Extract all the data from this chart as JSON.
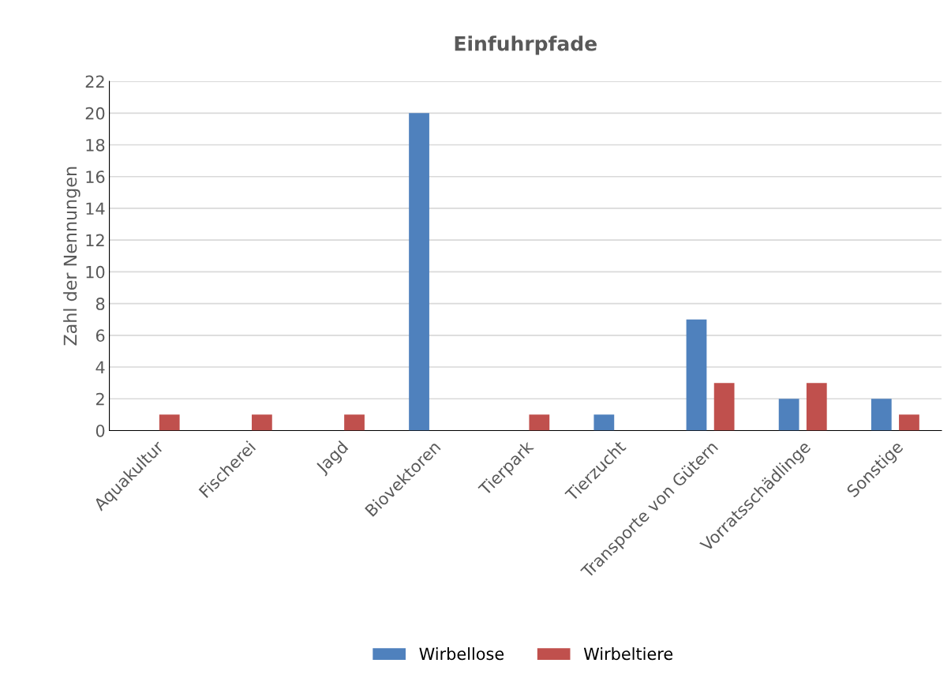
{
  "chart_data": {
    "type": "bar",
    "title": "Einfuhrpfade",
    "ylabel": "Zahl der Nennungen",
    "categories": [
      "Aquakultur",
      "Fischerei",
      "Jagd",
      "Biovektoren",
      "Tierpark",
      "Tierzucht",
      "Transporte von Gütern",
      "Vorratsschädlinge",
      "Sonstige"
    ],
    "series": [
      {
        "name": "Wirbellose",
        "color": "#4f81bd",
        "values": [
          0,
          0,
          0,
          20,
          0,
          1,
          7,
          2,
          2
        ]
      },
      {
        "name": "Wirbeltiere",
        "color": "#c0504d",
        "values": [
          1,
          1,
          1,
          0,
          1,
          0,
          3,
          3,
          1
        ]
      }
    ],
    "ylim": [
      0,
      22
    ],
    "yticks": [
      0,
      2,
      4,
      6,
      8,
      10,
      12,
      14,
      16,
      18,
      20,
      22
    ],
    "grid": "y",
    "legend": "bottom"
  }
}
